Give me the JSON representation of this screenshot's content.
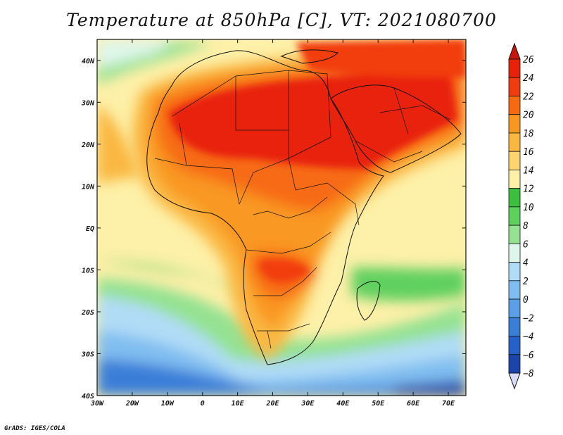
{
  "title": "Temperature at 850hPa [C], VT: 2021080700",
  "credit": "GrADS: IGES/COLA",
  "map": {
    "lon_range": [
      -30,
      75
    ],
    "lat_range": [
      -40,
      45
    ],
    "x_ticks": [
      {
        "lon": -30,
        "label": "30W"
      },
      {
        "lon": -20,
        "label": "20W"
      },
      {
        "lon": -10,
        "label": "10W"
      },
      {
        "lon": 0,
        "label": "0"
      },
      {
        "lon": 10,
        "label": "10E"
      },
      {
        "lon": 20,
        "label": "20E"
      },
      {
        "lon": 30,
        "label": "30E"
      },
      {
        "lon": 40,
        "label": "40E"
      },
      {
        "lon": 50,
        "label": "50E"
      },
      {
        "lon": 60,
        "label": "60E"
      },
      {
        "lon": 70,
        "label": "70E"
      }
    ],
    "y_ticks": [
      {
        "lat": 40,
        "label": "40N"
      },
      {
        "lat": 30,
        "label": "30N"
      },
      {
        "lat": 20,
        "label": "20N"
      },
      {
        "lat": 10,
        "label": "10N"
      },
      {
        "lat": 0,
        "label": "EQ"
      },
      {
        "lat": -10,
        "label": "10S"
      },
      {
        "lat": -20,
        "label": "20S"
      },
      {
        "lat": -30,
        "label": "30S"
      },
      {
        "lat": -40,
        "label": "40S"
      }
    ]
  },
  "colorbar": {
    "labels": [
      "26",
      "24",
      "22",
      "20",
      "18",
      "16",
      "14",
      "12",
      "10",
      "8",
      "6",
      "4",
      "2",
      "0",
      "−2",
      "−4",
      "−6",
      "−8"
    ],
    "colors": [
      "#e8220a",
      "#f23c10",
      "#f76a12",
      "#f99820",
      "#fab842",
      "#fcd470",
      "#fdf0a8",
      "#3cbf3c",
      "#5ed05e",
      "#94e292",
      "#dff6ec",
      "#b0dcf6",
      "#80bdf0",
      "#5a9fe8",
      "#3a7ed8",
      "#2660c8",
      "#1c44aa",
      "#14288a"
    ],
    "top_arrow_color": "#c8140a",
    "bottom_arrow_color": "#d8dcf8"
  }
}
